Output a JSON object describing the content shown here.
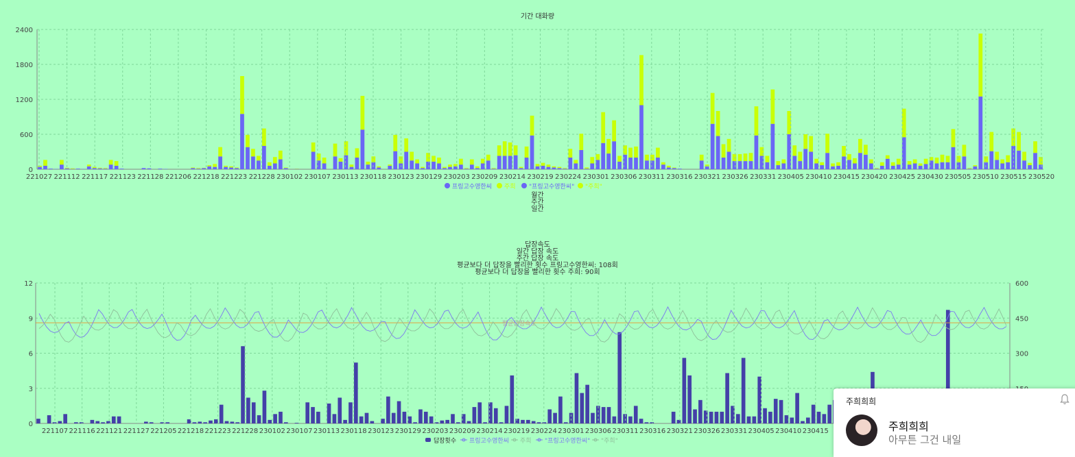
{
  "chart_data": [
    {
      "type": "bar",
      "stacked": true,
      "title": "기간 대화량",
      "ylim": [
        0,
        2400
      ],
      "yticks": [
        0,
        600,
        1200,
        1800,
        2400
      ],
      "grid": true,
      "xtick_labels": [
        "221027",
        "221112",
        "221117",
        "221123",
        "221128",
        "221206",
        "221218",
        "221223",
        "221228",
        "230102",
        "230107",
        "230113",
        "230118",
        "230123",
        "230129",
        "230203",
        "230209",
        "230214",
        "230219",
        "230224",
        "230301",
        "230306",
        "230311",
        "230316",
        "230321",
        "230326",
        "230331",
        "230405",
        "230410",
        "230415",
        "230420",
        "230425",
        "230430",
        "230505",
        "230510",
        "230515",
        "230520"
      ],
      "legend": [
        "프링고수영한씨",
        "주희",
        "\"프링고수영한씨\"",
        "\"주희\""
      ],
      "legend_placement": "bottom",
      "series": [
        {
          "name": "프링고수영한씨",
          "color": "#6a66f5",
          "values": [
            40,
            60,
            10,
            5,
            80,
            15,
            5,
            10,
            5,
            50,
            20,
            15,
            10,
            80,
            60,
            10,
            0,
            0,
            0,
            20,
            15,
            0,
            10,
            5,
            0,
            0,
            0,
            0,
            20,
            10,
            20,
            50,
            40,
            220,
            40,
            30,
            20,
            950,
            380,
            220,
            150,
            400,
            60,
            100,
            170,
            20,
            0,
            5,
            0,
            0,
            300,
            150,
            100,
            0,
            220,
            130,
            240,
            40,
            200,
            680,
            80,
            120,
            30,
            0,
            60,
            310,
            100,
            300,
            150,
            100,
            20,
            130,
            130,
            100,
            20,
            40,
            50,
            80,
            10,
            80,
            20,
            100,
            150,
            10,
            230,
            230,
            230,
            240,
            20,
            200,
            580,
            50,
            60,
            40,
            30,
            20,
            10,
            200,
            100,
            330,
            10,
            100,
            160,
            450,
            270,
            480,
            130,
            250,
            200,
            200,
            1100,
            150,
            150,
            200,
            80,
            30,
            20,
            10,
            0,
            0,
            0,
            150,
            50,
            780,
            570,
            200,
            300,
            140,
            140,
            140,
            140,
            580,
            230,
            120,
            780,
            70,
            100,
            600,
            230,
            140,
            350,
            300,
            100,
            70,
            280,
            50,
            60,
            220,
            160,
            100,
            280,
            250,
            100,
            10,
            60,
            180,
            60,
            80,
            550,
            80,
            100,
            60,
            90,
            150,
            100,
            120,
            120,
            380,
            120,
            220,
            10,
            50,
            1250,
            120,
            310,
            160,
            100,
            120,
            400,
            320,
            150,
            70,
            280,
            80
          ],
          "_note": ""
        },
        {
          "name": "주희",
          "color": "#c9ff06",
          "values": [
            20,
            100,
            0,
            0,
            80,
            10,
            10,
            0,
            0,
            30,
            20,
            10,
            10,
            80,
            80,
            0,
            0,
            0,
            0,
            0,
            0,
            0,
            0,
            0,
            0,
            0,
            0,
            0,
            10,
            10,
            5,
            20,
            50,
            160,
            20,
            20,
            10,
            650,
            210,
            130,
            80,
            300,
            60,
            110,
            150,
            10,
            0,
            5,
            0,
            0,
            160,
            120,
            100,
            0,
            220,
            60,
            240,
            40,
            160,
            580,
            50,
            100,
            20,
            0,
            20,
            280,
            120,
            230,
            150,
            70,
            20,
            150,
            100,
            100,
            20,
            40,
            40,
            100,
            10,
            90,
            30,
            80,
            100,
            10,
            180,
            250,
            230,
            170,
            20,
            190,
            340,
            40,
            50,
            40,
            20,
            20,
            10,
            150,
            60,
            280,
            20,
            110,
            100,
            530,
            250,
            360,
            100,
            160,
            170,
            190,
            860,
            100,
            100,
            170,
            40,
            30,
            10,
            0,
            0,
            0,
            0,
            100,
            30,
            530,
            430,
            230,
            220,
            120,
            120,
            130,
            140,
            500,
            150,
            110,
            590,
            70,
            70,
            400,
            180,
            160,
            250,
            270,
            80,
            50,
            330,
            50,
            60,
            180,
            100,
            90,
            240,
            170,
            70,
            10,
            60,
            60,
            60,
            100,
            490,
            60,
            70,
            40,
            90,
            60,
            100,
            130,
            110,
            310,
            110,
            200,
            10,
            20,
            1080,
            100,
            330,
            140,
            70,
            120,
            300,
            320,
            150,
            40,
            200,
            130
          ]
        }
      ]
    },
    {
      "type": "bar+line",
      "title": "답장속도",
      "subtitle_lines": [
        "일간 답장 속도",
        "주간 답장 속도",
        "평균보다 더 답장을 빨리한 횟수 프링고수영한씨: 108회",
        "평균보다 더 답장을 빨리한 횟수 주희: 90회"
      ],
      "ylim_left": [
        0,
        12
      ],
      "yticks_left": [
        0,
        3,
        6,
        9,
        12
      ],
      "ylim_right": [
        0,
        600
      ],
      "yticks_right": [
        0,
        150,
        300,
        450,
        600
      ],
      "reference_line": {
        "label": "평균답장속도",
        "value": 8.6,
        "axis": "left"
      },
      "xtick_labels": [
        "221107",
        "221116",
        "221121",
        "221127",
        "221205",
        "221218",
        "221223",
        "221228",
        "230102",
        "230107",
        "230113",
        "230118",
        "230123",
        "230129",
        "230203",
        "230209",
        "230214",
        "230219",
        "230224",
        "230301",
        "230306",
        "230311",
        "230316",
        "230321",
        "230326",
        "230331",
        "230405",
        "230410",
        "230415"
      ],
      "legend": [
        "답장횟수",
        "프링고수영한씨",
        "주희",
        "\"프링고수영한씨\"",
        "\"주희\""
      ],
      "legend_placement": "bottom",
      "bars": {
        "name": "답장횟수",
        "color": "#4440a8",
        "values": [
          0.4,
          0,
          0.7,
          0.1,
          0.2,
          0.8,
          0,
          0.1,
          0.1,
          0,
          0.3,
          0.2,
          0.1,
          0.2,
          0.6,
          0.6,
          0,
          0,
          0,
          0,
          0.15,
          0.1,
          0,
          0.1,
          0.1,
          0,
          0,
          0,
          0.35,
          0.1,
          0.15,
          0.1,
          0.25,
          0.35,
          1.6,
          0.2,
          0.15,
          0.1,
          6.6,
          2.2,
          1.8,
          0.7,
          2.8,
          0.3,
          0.8,
          1,
          0.1,
          0,
          0.05,
          0,
          1.8,
          1.4,
          1,
          0,
          1.7,
          0.8,
          2.2,
          0.3,
          1.8,
          5.2,
          0.6,
          0.9,
          0.2,
          0,
          0.4,
          2.3,
          0.9,
          1.9,
          1,
          0.6,
          0.1,
          1.2,
          1,
          0.6,
          0.1,
          0.25,
          0.3,
          0.8,
          0.1,
          0.8,
          0.2,
          1.4,
          1.8,
          0.1,
          1.8,
          1.3,
          0.1,
          1.5,
          4.1,
          0.4,
          0.3,
          0.3,
          0.2,
          0.1,
          0.1,
          1.2,
          0.9,
          2.3,
          0.1,
          0.9,
          4.3,
          2.6,
          3.3,
          0.9,
          1.5,
          1.4,
          1.4,
          0.6,
          7.8,
          0.8,
          0.6,
          1.5,
          0.4,
          0.1,
          0.1,
          0,
          0,
          0,
          1,
          0.3,
          5.6,
          4.1,
          1.2,
          2,
          1.1,
          1,
          1,
          1,
          4.3,
          1.5,
          0.8,
          5.6,
          0.6,
          0.6,
          4,
          1.3,
          1,
          2.1,
          2,
          0.7,
          0.5,
          2.6,
          0.2,
          0.5,
          1.6,
          1,
          0.8,
          1.6,
          2,
          0.4,
          0.05,
          0.5,
          1.6,
          0.2,
          0.5,
          4.4,
          0.4,
          0.5,
          0.3,
          0.5,
          0.8,
          0.7,
          0.8,
          0.9,
          2.7,
          0.8,
          1.4,
          0,
          0.4,
          9.7,
          0.6,
          2.4,
          1,
          0.5,
          0.8,
          2.7,
          2.1,
          1,
          0.3,
          2,
          0.4
        ]
      },
      "lines": [
        {
          "name": "프링고수영한씨",
          "color": "#7b78f0",
          "axis": "right"
        },
        {
          "name": "주희",
          "color": "#8fbf9a",
          "axis": "right"
        }
      ]
    }
  ],
  "period_options": [
    "월간",
    "주간",
    "일간"
  ],
  "notification": {
    "app_name": "주희희희",
    "sender": "주희희희",
    "message": "아무튼 그건 내일"
  }
}
